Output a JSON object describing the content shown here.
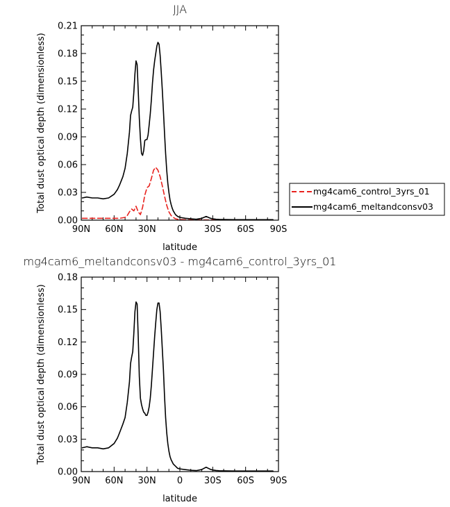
{
  "chart_data": [
    {
      "type": "line",
      "title": "JJA",
      "xlabel": "latitude",
      "ylabel": "Total dust optical depth (dimensionless)",
      "xlim": [
        90,
        -90
      ],
      "ylim": [
        0,
        0.21
      ],
      "xticks": [
        "90N",
        "60N",
        "30N",
        "0",
        "30S",
        "60S",
        "90S"
      ],
      "yticks": [
        "0.00",
        "0.03",
        "0.06",
        "0.09",
        "0.12",
        "0.15",
        "0.18",
        "0.21"
      ],
      "legend_position": "right",
      "series": [
        {
          "name": "mg4cam6_control_3yrs_01",
          "color": "#e8211d",
          "dash": "dashed",
          "x": [
            89,
            85,
            80,
            75,
            70,
            65,
            60,
            55,
            50,
            48,
            46,
            44,
            42,
            40,
            38,
            36,
            34,
            32,
            30,
            28,
            26,
            24,
            22,
            20,
            18,
            16,
            14,
            12,
            10,
            8,
            6,
            4,
            2,
            0,
            -5,
            -10,
            -15,
            -20,
            -25,
            -30,
            -35,
            -40,
            -45,
            -50,
            -55,
            -60,
            -65,
            -70,
            -75,
            -80,
            -85
          ],
          "y": [
            0.002,
            0.002,
            0.002,
            0.002,
            0.002,
            0.002,
            0.002,
            0.002,
            0.003,
            0.005,
            0.009,
            0.012,
            0.01,
            0.015,
            0.009,
            0.006,
            0.014,
            0.027,
            0.035,
            0.037,
            0.045,
            0.054,
            0.057,
            0.054,
            0.047,
            0.037,
            0.026,
            0.016,
            0.009,
            0.005,
            0.003,
            0.0015,
            0.001,
            0.0007,
            0.0004,
            0.0003,
            0.0002,
            0.0002,
            0.0002,
            0.0002,
            0.0002,
            0.0002,
            0.0002,
            0.0002,
            0.0002,
            0.0002,
            0.0002,
            0.0002,
            0.0002,
            0.0002,
            0.0002
          ]
        },
        {
          "name": "mg4cam6_meltandconsv03",
          "color": "#000000",
          "dash": "solid",
          "x": [
            89,
            85,
            80,
            75,
            70,
            65,
            60,
            57,
            55,
            52,
            50,
            48,
            46,
            45,
            44,
            43,
            42,
            41,
            40,
            39,
            38,
            37,
            36,
            35,
            34,
            33,
            32,
            31,
            30,
            29,
            28,
            27,
            26,
            25,
            24,
            23,
            22,
            21,
            20,
            19,
            18,
            17,
            16,
            15,
            14,
            13,
            12,
            11,
            10,
            9,
            8,
            7,
            6,
            5,
            4,
            2,
            0,
            -5,
            -10,
            -15,
            -20,
            -22,
            -24,
            -26,
            -28,
            -30,
            -33,
            -36,
            -40,
            -45,
            -50,
            -55,
            -60,
            -65,
            -70,
            -75,
            -80,
            -85
          ],
          "y": [
            0.024,
            0.025,
            0.024,
            0.024,
            0.023,
            0.024,
            0.028,
            0.033,
            0.038,
            0.047,
            0.056,
            0.072,
            0.095,
            0.113,
            0.118,
            0.122,
            0.138,
            0.158,
            0.172,
            0.168,
            0.14,
            0.11,
            0.088,
            0.072,
            0.07,
            0.075,
            0.086,
            0.087,
            0.087,
            0.092,
            0.103,
            0.115,
            0.13,
            0.148,
            0.162,
            0.172,
            0.18,
            0.188,
            0.192,
            0.19,
            0.178,
            0.16,
            0.14,
            0.118,
            0.094,
            0.072,
            0.054,
            0.04,
            0.03,
            0.022,
            0.017,
            0.013,
            0.01,
            0.008,
            0.006,
            0.004,
            0.003,
            0.002,
            0.0015,
            0.001,
            0.002,
            0.003,
            0.004,
            0.003,
            0.002,
            0.0015,
            0.001,
            0.0008,
            0.0007,
            0.0006,
            0.0005,
            0.0005,
            0.0005,
            0.0005,
            0.0005,
            0.0005,
            0.0005,
            0.0005
          ]
        }
      ]
    },
    {
      "type": "line",
      "title": "mg4cam6_meltandconsv03 - mg4cam6_control_3yrs_01",
      "xlabel": "latitude",
      "ylabel": "Total dust optical depth (dimensionless)",
      "xlim": [
        90,
        -90
      ],
      "ylim": [
        0,
        0.18
      ],
      "xticks": [
        "90N",
        "60N",
        "30N",
        "0",
        "30S",
        "60S",
        "90S"
      ],
      "yticks": [
        "0.00",
        "0.03",
        "0.06",
        "0.09",
        "0.12",
        "0.15",
        "0.18"
      ],
      "series": [
        {
          "color": "#000000",
          "dash": "solid",
          "x": [
            89,
            85,
            80,
            75,
            70,
            65,
            60,
            57,
            55,
            52,
            50,
            48,
            46,
            45,
            44,
            43,
            42,
            41,
            40,
            39,
            38,
            37,
            36,
            35,
            34,
            33,
            32,
            31,
            30,
            29,
            28,
            27,
            26,
            25,
            24,
            23,
            22,
            21,
            20,
            19,
            18,
            17,
            16,
            15,
            14,
            13,
            12,
            11,
            10,
            9,
            8,
            7,
            6,
            5,
            4,
            2,
            0,
            -5,
            -10,
            -15,
            -20,
            -22,
            -24,
            -26,
            -28,
            -30,
            -33,
            -36,
            -40,
            -45,
            -50,
            -55,
            -60,
            -65,
            -70,
            -75,
            -80,
            -85
          ],
          "y": [
            0.022,
            0.023,
            0.022,
            0.022,
            0.021,
            0.022,
            0.026,
            0.031,
            0.036,
            0.044,
            0.05,
            0.064,
            0.083,
            0.1,
            0.106,
            0.111,
            0.128,
            0.148,
            0.157,
            0.155,
            0.125,
            0.088,
            0.068,
            0.062,
            0.058,
            0.055,
            0.054,
            0.052,
            0.052,
            0.055,
            0.06,
            0.068,
            0.08,
            0.095,
            0.11,
            0.125,
            0.138,
            0.15,
            0.156,
            0.156,
            0.148,
            0.132,
            0.113,
            0.094,
            0.07,
            0.05,
            0.036,
            0.026,
            0.019,
            0.014,
            0.011,
            0.009,
            0.007,
            0.006,
            0.005,
            0.003,
            0.0025,
            0.0018,
            0.0012,
            0.0009,
            0.0019,
            0.003,
            0.004,
            0.003,
            0.002,
            0.0015,
            0.001,
            0.0008,
            0.0007,
            0.0006,
            0.0005,
            0.0005,
            0.0005,
            0.0005,
            0.0005,
            0.0005,
            0.0005,
            0.0005
          ]
        }
      ]
    }
  ]
}
